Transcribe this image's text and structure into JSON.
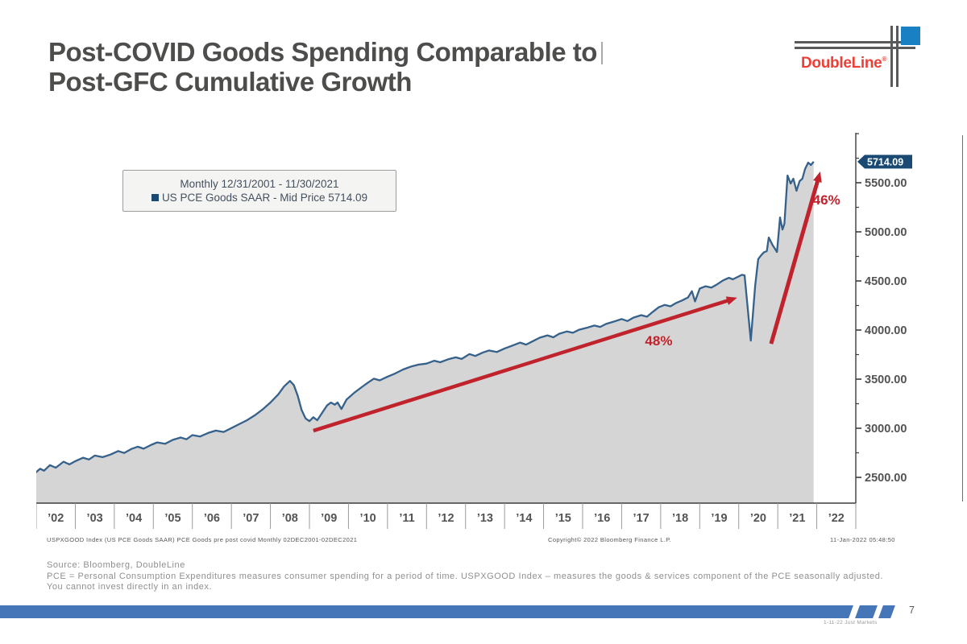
{
  "slide": {
    "title_line1": "Post-COVID Goods Spending Comparable to",
    "title_line2": "Post-GFC Cumulative Growth",
    "page_number": "7",
    "bottom_note": "1-11-22 Just Markets"
  },
  "logo": {
    "wordmark": "DoubleLine",
    "registered": "®",
    "red": "#ee3e36",
    "blue": "#1a80c4",
    "line_gray": "#58595b"
  },
  "legend": {
    "line1": "Monthly 12/31/2001 - 11/30/2021",
    "line2": "US PCE Goods SAAR - Mid Price 5714.09",
    "marker_color": "#1a4a73"
  },
  "bloomberg_footer": {
    "left": "USPXGOOD Index (US PCE Goods SAAR) PCE Goods pre post covid  Monthly 02DEC2001-02DEC2021",
    "center": "Copyright© 2022 Bloomberg Finance L.P.",
    "right": "11-Jan-2022 05:48:50"
  },
  "source_block": {
    "line1": "Source: Bloomberg, DoubleLine",
    "line2": "PCE = Personal Consumption Expenditures measures consumer spending for a period of time. USPXGOOD Index – measures the goods & services component of the PCE seasonally adjusted.",
    "line3": "You cannot invest directly in an index."
  },
  "bottom_bar": {
    "color": "#4576b7"
  },
  "chart_data": {
    "type": "area",
    "title": "US PCE Goods SAAR - Mid Price",
    "last_price": 5714.09,
    "last_price_label": "5714.09",
    "x_axis": {
      "tick_labels": [
        "’02",
        "’03",
        "’04",
        "’05",
        "’06",
        "’07",
        "’08",
        "’09",
        "’10",
        "’11",
        "’12",
        "’13",
        "’14",
        "’15",
        "’16",
        "’17",
        "’18",
        "’19",
        "’20",
        "’21",
        "’22"
      ],
      "start_year": 2002,
      "end_year": 2023
    },
    "y_axis": {
      "major_ticks": [
        {
          "value": 2500,
          "label": "2500.00"
        },
        {
          "value": 3000,
          "label": "3000.00"
        },
        {
          "value": 3500,
          "label": "3500.00"
        },
        {
          "value": 4000,
          "label": "4000.00"
        },
        {
          "value": 4500,
          "label": "4500.00"
        },
        {
          "value": 5000,
          "label": "5000.00"
        },
        {
          "value": 5500,
          "label": "5500.00"
        }
      ],
      "minor_step": 250,
      "minor_min": 2750,
      "minor_max": 6000,
      "value_min": 2240,
      "value_max": 6010
    },
    "annotations": [
      {
        "label": "48%",
        "from": [
          2009.1,
          2975
        ],
        "to": [
          2019.96,
          4330
        ],
        "label_at": [
          2017.95,
          3845
        ],
        "width": 4.5
      },
      {
        "label": "46%",
        "from": [
          2020.83,
          3860
        ],
        "to": [
          2022.09,
          5615
        ],
        "label_at": [
          2022.25,
          5280
        ],
        "width": 5
      }
    ],
    "series": [
      {
        "name": "US PCE Goods SAAR - Mid Price 5714.09",
        "points": [
          [
            2001.96,
            2540
          ],
          [
            2002.1,
            2588
          ],
          [
            2002.2,
            2568
          ],
          [
            2002.35,
            2625
          ],
          [
            2002.5,
            2598
          ],
          [
            2002.7,
            2660
          ],
          [
            2002.85,
            2632
          ],
          [
            2003.0,
            2665
          ],
          [
            2003.2,
            2700
          ],
          [
            2003.35,
            2682
          ],
          [
            2003.5,
            2722
          ],
          [
            2003.7,
            2706
          ],
          [
            2003.9,
            2732
          ],
          [
            2004.1,
            2768
          ],
          [
            2004.25,
            2748
          ],
          [
            2004.45,
            2792
          ],
          [
            2004.6,
            2812
          ],
          [
            2004.75,
            2792
          ],
          [
            2004.95,
            2832
          ],
          [
            2005.1,
            2856
          ],
          [
            2005.3,
            2842
          ],
          [
            2005.5,
            2882
          ],
          [
            2005.7,
            2906
          ],
          [
            2005.85,
            2888
          ],
          [
            2006.0,
            2930
          ],
          [
            2006.2,
            2916
          ],
          [
            2006.4,
            2952
          ],
          [
            2006.6,
            2976
          ],
          [
            2006.8,
            2962
          ],
          [
            2007.0,
            3002
          ],
          [
            2007.2,
            3042
          ],
          [
            2007.4,
            3082
          ],
          [
            2007.6,
            3132
          ],
          [
            2007.8,
            3192
          ],
          [
            2008.0,
            3262
          ],
          [
            2008.2,
            3345
          ],
          [
            2008.35,
            3425
          ],
          [
            2008.5,
            3482
          ],
          [
            2008.6,
            3440
          ],
          [
            2008.7,
            3330
          ],
          [
            2008.8,
            3185
          ],
          [
            2008.9,
            3100
          ],
          [
            2009.0,
            3072
          ],
          [
            2009.1,
            3112
          ],
          [
            2009.2,
            3082
          ],
          [
            2009.3,
            3142
          ],
          [
            2009.45,
            3232
          ],
          [
            2009.55,
            3262
          ],
          [
            2009.65,
            3240
          ],
          [
            2009.72,
            3262
          ],
          [
            2009.82,
            3196
          ],
          [
            2009.95,
            3292
          ],
          [
            2010.15,
            3362
          ],
          [
            2010.35,
            3422
          ],
          [
            2010.5,
            3465
          ],
          [
            2010.65,
            3505
          ],
          [
            2010.8,
            3488
          ],
          [
            2011.0,
            3525
          ],
          [
            2011.2,
            3558
          ],
          [
            2011.4,
            3598
          ],
          [
            2011.6,
            3628
          ],
          [
            2011.8,
            3648
          ],
          [
            2012.0,
            3658
          ],
          [
            2012.2,
            3688
          ],
          [
            2012.35,
            3672
          ],
          [
            2012.55,
            3702
          ],
          [
            2012.75,
            3722
          ],
          [
            2012.9,
            3706
          ],
          [
            2013.1,
            3756
          ],
          [
            2013.25,
            3736
          ],
          [
            2013.45,
            3772
          ],
          [
            2013.6,
            3792
          ],
          [
            2013.8,
            3776
          ],
          [
            2014.0,
            3812
          ],
          [
            2014.2,
            3842
          ],
          [
            2014.4,
            3872
          ],
          [
            2014.55,
            3852
          ],
          [
            2014.75,
            3892
          ],
          [
            2014.9,
            3922
          ],
          [
            2015.1,
            3946
          ],
          [
            2015.25,
            3926
          ],
          [
            2015.4,
            3962
          ],
          [
            2015.6,
            3986
          ],
          [
            2015.75,
            3972
          ],
          [
            2015.9,
            4002
          ],
          [
            2016.1,
            4022
          ],
          [
            2016.3,
            4046
          ],
          [
            2016.45,
            4032
          ],
          [
            2016.6,
            4062
          ],
          [
            2016.8,
            4086
          ],
          [
            2017.0,
            4112
          ],
          [
            2017.15,
            4092
          ],
          [
            2017.3,
            4126
          ],
          [
            2017.5,
            4152
          ],
          [
            2017.65,
            4136
          ],
          [
            2017.8,
            4186
          ],
          [
            2017.95,
            4232
          ],
          [
            2018.1,
            4256
          ],
          [
            2018.25,
            4242
          ],
          [
            2018.4,
            4276
          ],
          [
            2018.55,
            4302
          ],
          [
            2018.7,
            4332
          ],
          [
            2018.8,
            4396
          ],
          [
            2018.88,
            4292
          ],
          [
            2019.0,
            4422
          ],
          [
            2019.15,
            4446
          ],
          [
            2019.3,
            4432
          ],
          [
            2019.45,
            4466
          ],
          [
            2019.6,
            4506
          ],
          [
            2019.75,
            4532
          ],
          [
            2019.85,
            4516
          ],
          [
            2020.0,
            4546
          ],
          [
            2020.08,
            4562
          ],
          [
            2020.15,
            4557
          ],
          [
            2020.31,
            3893
          ],
          [
            2020.42,
            4450
          ],
          [
            2020.5,
            4722
          ],
          [
            2020.56,
            4754
          ],
          [
            2020.64,
            4790
          ],
          [
            2020.72,
            4804
          ],
          [
            2020.77,
            4943
          ],
          [
            2020.86,
            4870
          ],
          [
            2020.98,
            4795
          ],
          [
            2021.06,
            5147
          ],
          [
            2021.12,
            5024
          ],
          [
            2021.17,
            5082
          ],
          [
            2021.25,
            5574
          ],
          [
            2021.33,
            5492
          ],
          [
            2021.4,
            5541
          ],
          [
            2021.48,
            5418
          ],
          [
            2021.56,
            5516
          ],
          [
            2021.63,
            5541
          ],
          [
            2021.7,
            5639
          ],
          [
            2021.78,
            5705
          ],
          [
            2021.85,
            5680
          ],
          [
            2021.92,
            5714.09
          ]
        ]
      }
    ],
    "colors": {
      "line": "#35618b",
      "fill": "#d5d5d5",
      "annotation_red": "#c0232c",
      "price_tag_bg": "#1a4a73",
      "price_tag_text": "#ffffff",
      "axis": "#3c3c3c",
      "tick_label": "#535353"
    },
    "legend_position": "top-left",
    "grid": false
  }
}
